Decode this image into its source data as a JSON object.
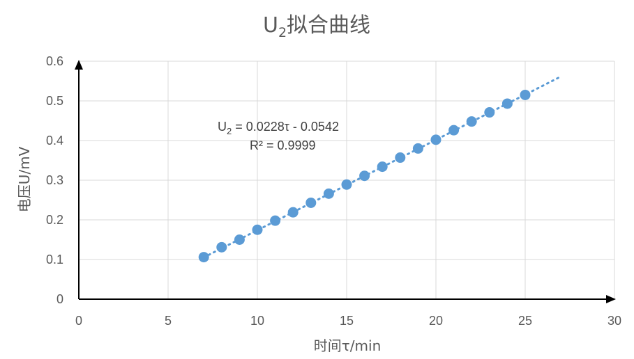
{
  "chart_data": {
    "type": "scatter",
    "title_main": "U",
    "title_sub": "2",
    "title_rest": "拟合曲线",
    "xlabel": "时间τ/min",
    "ylabel": "电压U/mV",
    "xlim": [
      0,
      30
    ],
    "ylim": [
      0,
      0.6
    ],
    "x_ticks": [
      "0",
      "5",
      "10",
      "15",
      "20",
      "25",
      "30"
    ],
    "y_ticks": [
      "0",
      "0.1",
      "0.2",
      "0.3",
      "0.4",
      "0.5",
      "0.6"
    ],
    "x_tick_values": [
      0,
      5,
      10,
      15,
      20,
      25,
      30
    ],
    "y_tick_values": [
      0,
      0.1,
      0.2,
      0.3,
      0.4,
      0.5,
      0.6
    ],
    "grid": true,
    "series": [
      {
        "color": "#5b9bd5",
        "x": [
          7,
          8,
          9,
          10,
          11,
          12,
          13,
          14,
          15,
          16,
          17,
          18,
          19,
          20,
          21,
          22,
          23,
          24,
          25
        ],
        "y": [
          0.106,
          0.131,
          0.15,
          0.175,
          0.198,
          0.219,
          0.243,
          0.266,
          0.289,
          0.311,
          0.334,
          0.357,
          0.38,
          0.402,
          0.426,
          0.448,
          0.471,
          0.493,
          0.515
        ]
      }
    ],
    "trendline": {
      "type": "linear",
      "slope": 0.0228,
      "intercept": -0.0542,
      "x_range": [
        7,
        27
      ],
      "color": "#5b9bd5",
      "style": "dotted",
      "equation_prefix": "U",
      "equation_sub": "2",
      "equation_rest": " = 0.0228τ - 0.0542",
      "r_squared": "R² = 0.9999"
    }
  }
}
